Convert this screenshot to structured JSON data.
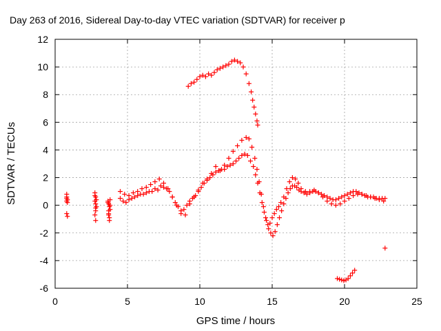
{
  "chart_data": {
    "type": "scatter",
    "title": "Day 263 of 2016, Sidereal Day-to-day VTEC variation (SDTVAR) for receiver p",
    "xlabel": "GPS time / hours",
    "ylabel": "SDTVAR / TECUs",
    "xlim": [
      0,
      25
    ],
    "ylim": [
      -6,
      12
    ],
    "xticks": [
      0,
      5,
      10,
      15,
      20,
      25
    ],
    "yticks": [
      -6,
      -4,
      -2,
      0,
      2,
      4,
      6,
      8,
      10,
      12
    ],
    "grid": true,
    "marker": "+",
    "color": "#ff0000",
    "series": [
      {
        "x": [
          0.8,
          0.8,
          0.85,
          0.8,
          0.85,
          0.8,
          0.85,
          0.8,
          2.75,
          2.8,
          2.75,
          2.8,
          2.85,
          2.8,
          2.75,
          2.8,
          2.85,
          2.8,
          2.75,
          3.65,
          3.7,
          3.75,
          3.8,
          3.7,
          3.75,
          3.65,
          3.8,
          3.7,
          3.75,
          3.8,
          3.7
        ],
        "y": [
          0.8,
          0.6,
          0.4,
          0.3,
          0.2,
          -0.6,
          -0.8,
          0.5,
          0.9,
          0.6,
          0.3,
          0.1,
          -0.1,
          -0.4,
          -0.7,
          -1.1,
          0.4,
          -0.2,
          0.7,
          0.3,
          0.1,
          -0.1,
          -0.3,
          -0.6,
          -0.9,
          0.2,
          0.4,
          -0.4,
          -1.1,
          0.0,
          -0.7
        ]
      },
      {
        "x": [
          4.5,
          4.7,
          4.9,
          5.1,
          5.3,
          5.5,
          5.7,
          5.9,
          6.1,
          6.3,
          6.5,
          6.7,
          6.9,
          7.1,
          7.3,
          7.5,
          7.7,
          7.9,
          8.1,
          8.3,
          8.5,
          8.7,
          8.9,
          9.1,
          9.3,
          9.5,
          9.7,
          9.9,
          10.1,
          10.3,
          10.5,
          10.7,
          10.9,
          11.1,
          11.3,
          11.5,
          11.7,
          11.9,
          12.1,
          12.3,
          12.5,
          12.7,
          12.9,
          13.1,
          13.3,
          13.5,
          13.7,
          13.85,
          14.0,
          14.15,
          14.3,
          14.45,
          14.6,
          14.75,
          14.9,
          15.05,
          15.2,
          15.35,
          15.5,
          15.65,
          15.8,
          15.95,
          16.1,
          16.25,
          16.4,
          16.55,
          16.7,
          16.85,
          17.0,
          17.2,
          17.4,
          17.6,
          17.8,
          18.0,
          18.2,
          18.4,
          18.6,
          18.8,
          19.0,
          19.2,
          19.4,
          19.6,
          19.8,
          20.0,
          20.2,
          20.4,
          20.6,
          20.8,
          21.0,
          21.2,
          21.4,
          21.6,
          21.8,
          22.0,
          22.2,
          22.4,
          22.6,
          22.8
        ],
        "y": [
          0.5,
          0.3,
          0.2,
          0.4,
          0.5,
          0.6,
          0.7,
          0.8,
          0.8,
          0.9,
          1.0,
          1.0,
          1.2,
          1.1,
          1.4,
          1.3,
          1.2,
          1.0,
          0.6,
          0.2,
          -0.1,
          -0.4,
          -0.3,
          0.0,
          0.3,
          0.5,
          0.7,
          1.0,
          1.3,
          1.6,
          1.8,
          2.0,
          2.2,
          2.4,
          2.5,
          2.6,
          2.6,
          2.8,
          2.9,
          3.0,
          3.2,
          3.4,
          3.6,
          3.7,
          3.6,
          3.2,
          2.8,
          2.2,
          1.6,
          0.9,
          0.2,
          -0.5,
          -1.1,
          -1.7,
          -2.0,
          -2.2,
          -1.9,
          -1.4,
          -0.9,
          -0.4,
          0.1,
          0.5,
          0.9,
          1.2,
          1.4,
          1.4,
          1.3,
          1.1,
          1.0,
          0.9,
          0.8,
          0.9,
          1.0,
          1.0,
          0.9,
          0.8,
          0.7,
          0.6,
          0.5,
          0.4,
          0.4,
          0.5,
          0.6,
          0.7,
          0.8,
          0.9,
          1.0,
          1.0,
          0.9,
          0.8,
          0.7,
          0.6,
          0.6,
          0.6,
          0.5,
          0.5,
          0.5,
          0.5
        ]
      },
      {
        "x": [
          4.5,
          4.8,
          5.1,
          5.4,
          5.7,
          6.0,
          6.3,
          6.6,
          6.9,
          7.2,
          7.5,
          7.8,
          8.1,
          8.4,
          8.7,
          9.0,
          9.3,
          9.6,
          9.9,
          10.2,
          10.5,
          10.8,
          11.1,
          11.4,
          11.7,
          12.0,
          12.3,
          12.6,
          12.9,
          13.2,
          13.4,
          13.6,
          13.8,
          13.95,
          14.1,
          14.25,
          14.4,
          14.55,
          14.7,
          14.85,
          15.0,
          15.15,
          15.3,
          15.45,
          15.6,
          15.8,
          16.0,
          16.2,
          16.4,
          16.6,
          16.8,
          17.0,
          17.3,
          17.6,
          17.9,
          18.2,
          18.5,
          18.8,
          19.1,
          19.4,
          19.7,
          20.0,
          20.3,
          20.6,
          20.9,
          21.2,
          21.5,
          21.8,
          22.1,
          22.4,
          22.7
        ],
        "y": [
          1.0,
          0.8,
          0.7,
          0.9,
          1.0,
          1.2,
          1.3,
          1.5,
          1.7,
          1.9,
          1.6,
          1.2,
          0.6,
          0.0,
          -0.6,
          -0.7,
          0.1,
          0.6,
          1.1,
          1.6,
          1.9,
          2.3,
          2.8,
          2.5,
          2.9,
          3.4,
          3.9,
          4.3,
          4.7,
          4.9,
          4.8,
          4.2,
          3.4,
          2.6,
          1.7,
          0.8,
          -0.1,
          -0.9,
          -1.4,
          -1.3,
          -0.9,
          -0.6,
          -0.3,
          -0.1,
          0.2,
          0.6,
          1.2,
          1.7,
          2.0,
          1.9,
          1.6,
          1.2,
          1.0,
          1.0,
          1.1,
          0.9,
          0.6,
          0.3,
          0.1,
          0.0,
          0.1,
          0.3,
          0.5,
          0.7,
          0.8,
          0.8,
          0.7,
          0.6,
          0.5,
          0.4,
          0.3
        ]
      },
      {
        "x": [
          9.2,
          9.4,
          9.6,
          9.8,
          10.0,
          10.2,
          10.4,
          10.6,
          10.8,
          11.0,
          11.2,
          11.4,
          11.6,
          11.8,
          12.0,
          12.2,
          12.4,
          12.6,
          12.8,
          13.0,
          13.2,
          13.4,
          13.55,
          13.65,
          13.75,
          13.85,
          13.95,
          14.0
        ],
        "y": [
          8.6,
          8.8,
          8.9,
          9.1,
          9.3,
          9.4,
          9.3,
          9.5,
          9.4,
          9.6,
          9.8,
          9.9,
          10.0,
          10.1,
          10.2,
          10.4,
          10.5,
          10.4,
          10.3,
          10.0,
          9.5,
          8.8,
          8.2,
          7.6,
          7.1,
          6.6,
          6.1,
          5.8
        ]
      },
      {
        "x": [
          19.5,
          19.65,
          19.8,
          19.95,
          20.1,
          20.25,
          20.4,
          20.55,
          20.7
        ],
        "y": [
          -5.3,
          -5.35,
          -5.4,
          -5.45,
          -5.4,
          -5.3,
          -5.1,
          -4.9,
          -4.7
        ]
      },
      {
        "x": [
          22.8
        ],
        "y": [
          -3.1
        ]
      }
    ]
  }
}
